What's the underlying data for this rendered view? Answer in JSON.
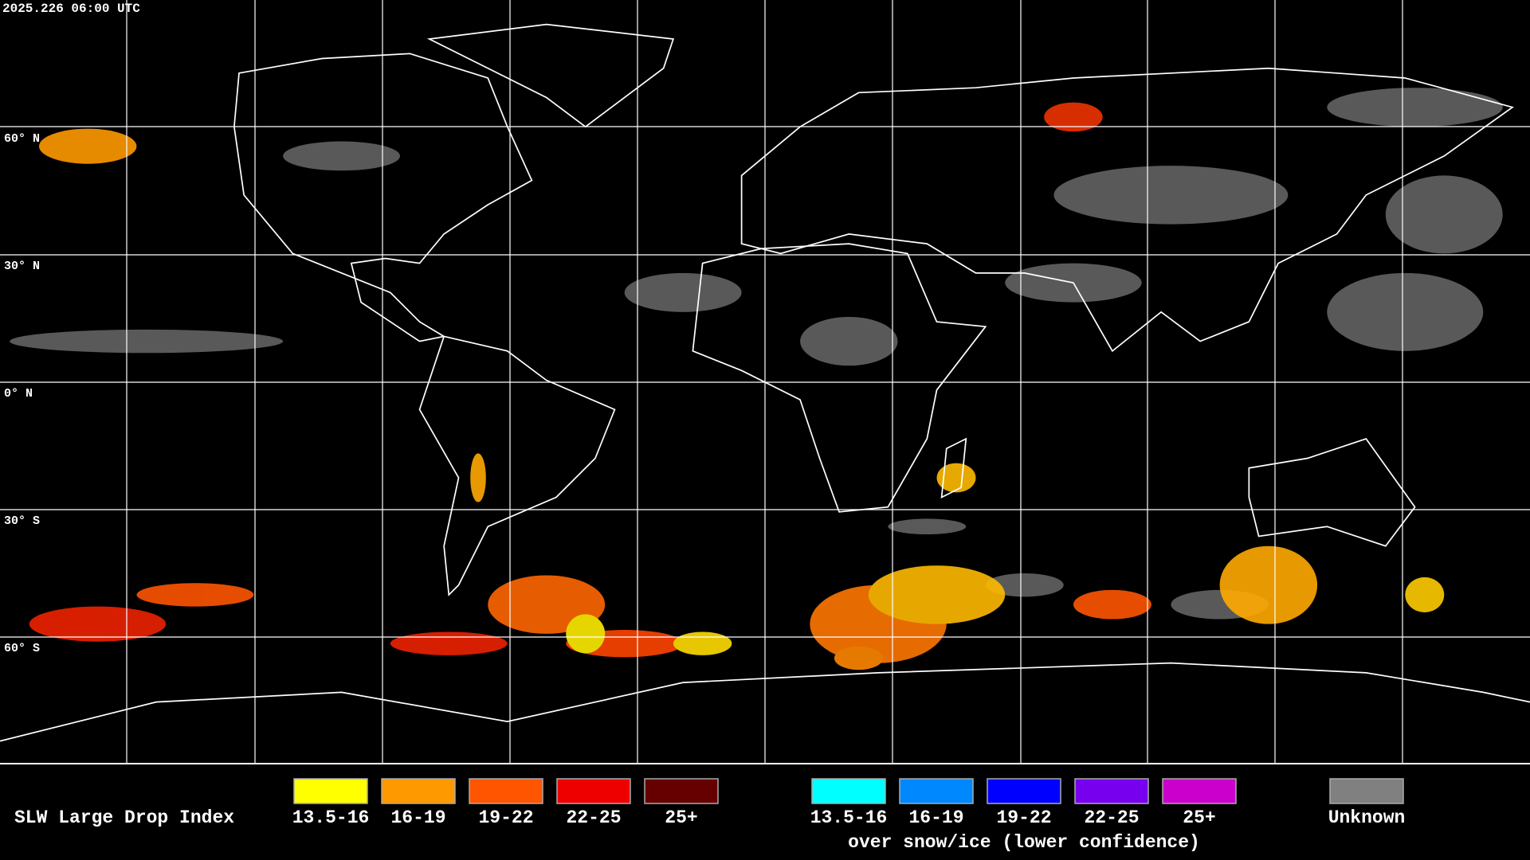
{
  "timestamp": "2025.226 06:00 UTC",
  "latitude_labels": [
    "60° N",
    "30° N",
    "0° N",
    "30° S",
    "60° S"
  ],
  "legend": {
    "title": "SLW Large Drop Index",
    "groups": [
      {
        "items": [
          {
            "label": "13.5-16",
            "color": "#ffff00"
          },
          {
            "label": "16-19",
            "color": "#ff9900"
          },
          {
            "label": "19-22",
            "color": "#ff5500"
          },
          {
            "label": "22-25",
            "color": "#ee0000"
          },
          {
            "label": "25+",
            "color": "#660000"
          }
        ]
      },
      {
        "items": [
          {
            "label": "13.5-16",
            "color": "#00ffff"
          },
          {
            "label": "16-19",
            "color": "#0088ff"
          },
          {
            "label": "19-22",
            "color": "#0000ff"
          },
          {
            "label": "22-25",
            "color": "#7700ee"
          },
          {
            "label": "25+",
            "color": "#cc00cc"
          }
        ],
        "note": "over snow/ice (lower confidence)"
      },
      {
        "items": [
          {
            "label": "Unknown",
            "color": "#808080"
          }
        ]
      }
    ]
  }
}
